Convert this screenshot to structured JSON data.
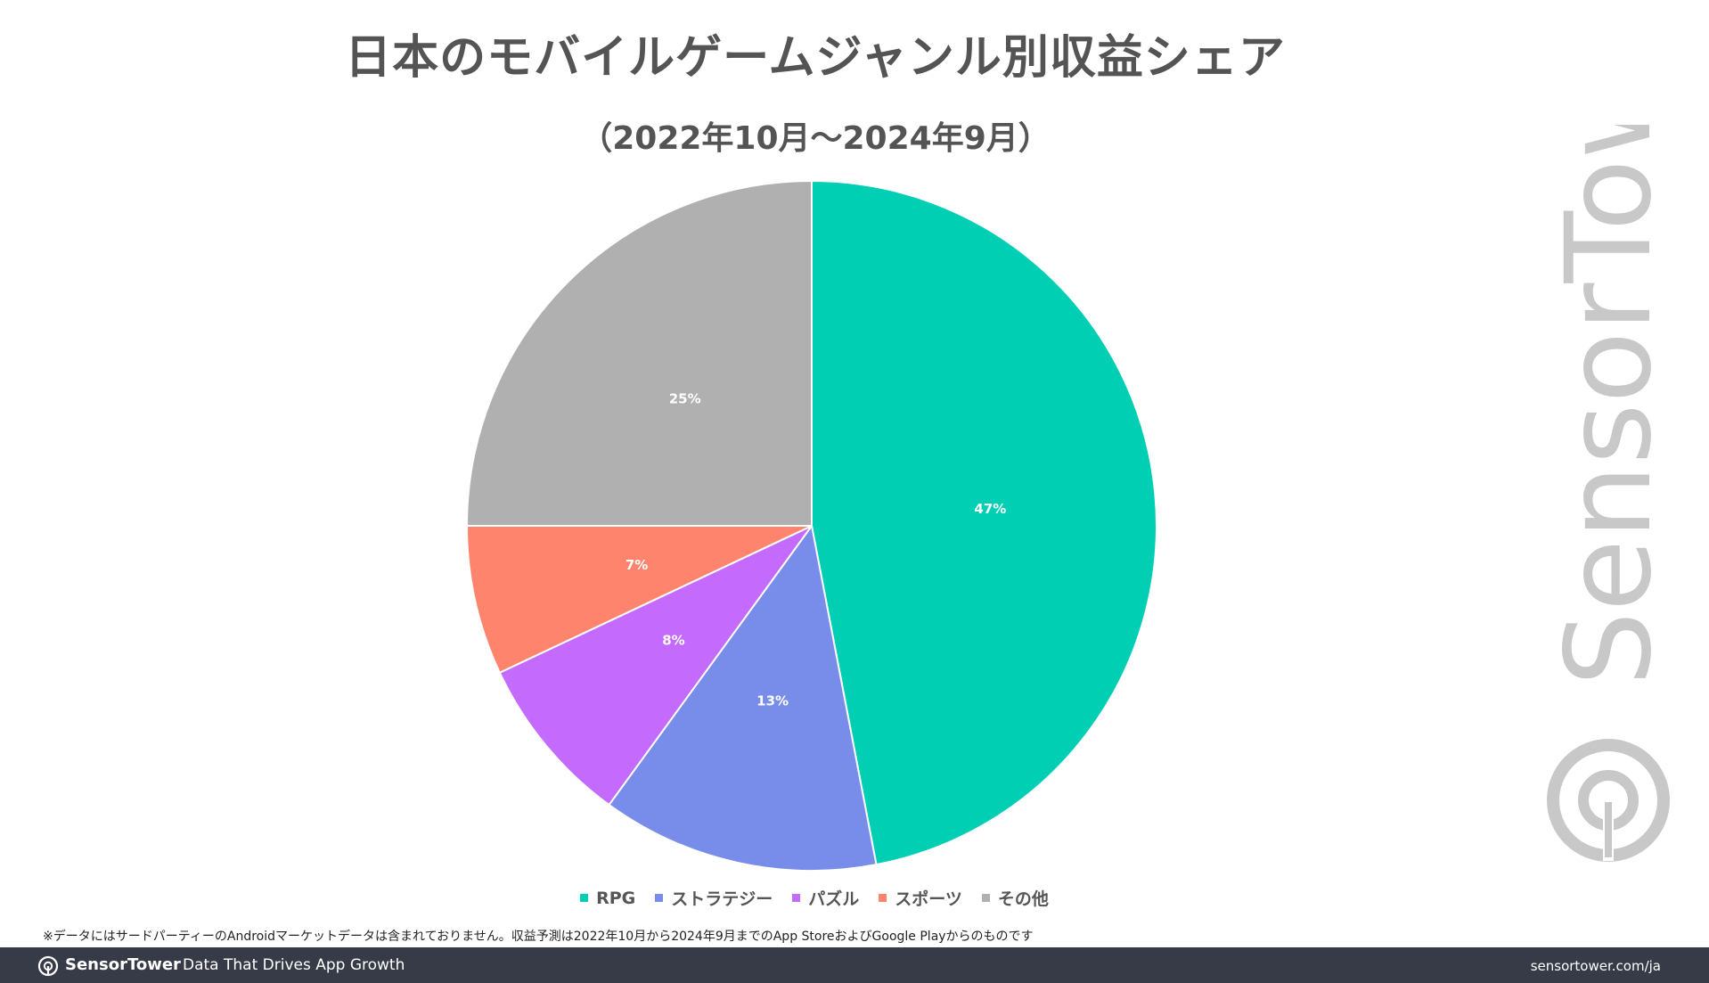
{
  "chart_data": {
    "type": "pie",
    "title": "日本のモバイルゲームジャンル別収益シェア",
    "subtitle": "（2022年10月～2024年9月）",
    "legend_position": "bottom",
    "series": [
      {
        "name": "RPG",
        "value": 47,
        "label": "47%",
        "color": "#00cfb4"
      },
      {
        "name": "ストラテジー",
        "value": 13,
        "label": "13%",
        "color": "#788dea"
      },
      {
        "name": "パズル",
        "value": 8,
        "label": "8%",
        "color": "#c46bfd"
      },
      {
        "name": "スポーツ",
        "value": 7,
        "label": "7%",
        "color": "#ff846e"
      },
      {
        "name": "その他",
        "value": 25,
        "label": "25%",
        "color": "#b0b0b0"
      }
    ]
  },
  "footnote": "※データにはサードパーティーのAndroidマーケットデータは含まれておりません。収益予測は2022年10月から2024年9月までのApp StoreおよびGoogle Playからのものです",
  "footer": {
    "brand": "SensorTower",
    "tagline": "Data That Drives App Growth",
    "url": "sensortower.com/ja"
  },
  "watermark": {
    "text": "SensorTower",
    "icon": "sensortower-logo-icon"
  }
}
